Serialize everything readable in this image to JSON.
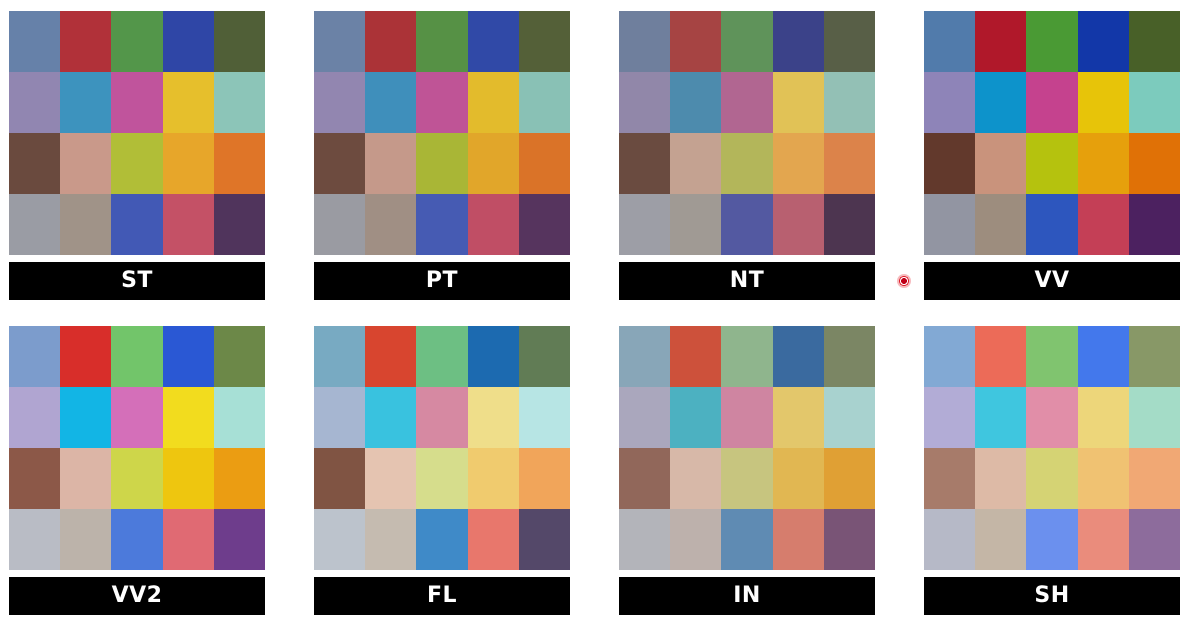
{
  "cards": [
    {
      "label": "ST",
      "colors": [
        "#6681a9",
        "#b13139",
        "#53964a",
        "#2f46a6",
        "#505f37",
        "#9186b1",
        "#3d93be",
        "#c0549c",
        "#e6bf2c",
        "#8cc5b8",
        "#6a4a3e",
        "#c9998a",
        "#b1be37",
        "#e7a62a",
        "#df7528",
        "#9a9ca4",
        "#a09388",
        "#4259b5",
        "#c45166",
        "#50345c"
      ]
    },
    {
      "label": "PT",
      "colors": [
        "#6b82a6",
        "#ab3337",
        "#569145",
        "#3049a7",
        "#546038",
        "#9286b0",
        "#3f8fbb",
        "#bf5496",
        "#e3bb2c",
        "#89c1b5",
        "#6d4b3f",
        "#c5998a",
        "#a9b636",
        "#e1a62a",
        "#da7328",
        "#9a9ba2",
        "#a08f84",
        "#465bb3",
        "#c04e65",
        "#56345e"
      ]
    },
    {
      "label": "NT",
      "colors": [
        "#6f7f9d",
        "#a64443",
        "#5f935a",
        "#3b4289",
        "#585f47",
        "#9187a9",
        "#4d8bad",
        "#b16691",
        "#e1c256",
        "#93c0b5",
        "#6a4b40",
        "#c4a291",
        "#b3b65a",
        "#e3a64f",
        "#dc834a",
        "#9d9ea6",
        "#a09a94",
        "#5359a1",
        "#b86070",
        "#4d3550"
      ]
    },
    {
      "label": "VV",
      "colors": [
        "#517bab",
        "#b0182a",
        "#4a9a34",
        "#1237a8",
        "#486028",
        "#8e84b8",
        "#0d93cb",
        "#c5428e",
        "#e7c409",
        "#7ccbbd",
        "#62392c",
        "#c9937c",
        "#b5c20e",
        "#e6a00c",
        "#e07106",
        "#9295a2",
        "#9d8d7e",
        "#2d56be",
        "#c43f56",
        "#4c2160"
      ]
    },
    {
      "label": "VV2",
      "colors": [
        "#7c9ccc",
        "#d82e2a",
        "#72c56a",
        "#2a58d4",
        "#6c8848",
        "#b0a5d1",
        "#12b5e5",
        "#d46fb9",
        "#f2dc1e",
        "#a7e0d6",
        "#8c5848",
        "#dcb5a6",
        "#ced64a",
        "#eec60f",
        "#eb9d12",
        "#b9bcc5",
        "#bcb3aa",
        "#4c7adb",
        "#e06a73",
        "#6e3d8c"
      ]
    },
    {
      "label": "FL",
      "colors": [
        "#78aac2",
        "#d8452f",
        "#6dbf83",
        "#1c6ab0",
        "#617c55",
        "#a6b6d1",
        "#39c2df",
        "#d689a2",
        "#efde8a",
        "#b7e5e4",
        "#805443",
        "#e5c4b1",
        "#d6dd8c",
        "#f0cb6e",
        "#f1a55a",
        "#bcc3cc",
        "#c5bbb0",
        "#3f8ac8",
        "#e8776c",
        "#544869"
      ]
    },
    {
      "label": "IN",
      "colors": [
        "#88a6b8",
        "#cd513b",
        "#8fb58d",
        "#3a6a9f",
        "#7b8664",
        "#aaa7bd",
        "#4cb1c1",
        "#cf85a1",
        "#e3c76b",
        "#a8d2cf",
        "#91675a",
        "#d7b8a8",
        "#c7c57f",
        "#e1b752",
        "#e0a034",
        "#b3b4ba",
        "#bdb1ac",
        "#5f8bb3",
        "#d67d6d",
        "#795476"
      ]
    },
    {
      "label": "SH",
      "colors": [
        "#82a9d4",
        "#ec6b58",
        "#80c46f",
        "#4378ec",
        "#889867",
        "#b2acd6",
        "#3fc6df",
        "#e18ea8",
        "#edd67a",
        "#a4dcc7",
        "#a77b6a",
        "#ddbaa6",
        "#d5d374",
        "#f0c272",
        "#f1a874",
        "#b6b9c7",
        "#c4b6a6",
        "#6b90ee",
        "#ea8c7c",
        "#8d6c9c"
      ]
    }
  ]
}
